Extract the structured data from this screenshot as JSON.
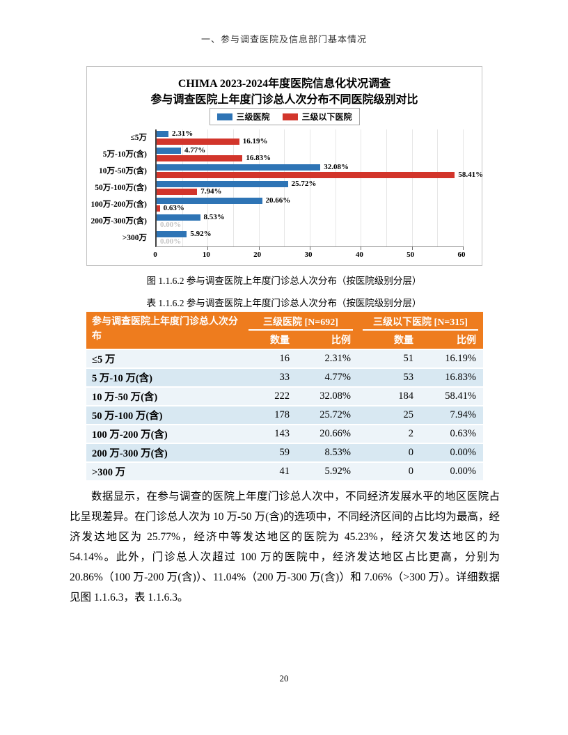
{
  "page": {
    "header": "一、参与调查医院及信息部门基本情况",
    "page_number": "20"
  },
  "chart_data": {
    "type": "bar",
    "orientation": "horizontal",
    "title_line1": "CHIMA 2023-2024年度医院信息化状况调查",
    "title_line2": "参与调查医院上年度门诊总人次分布不同医院级别对比",
    "categories": [
      "≤5万",
      "5万-10万(含)",
      "10万-50万(含)",
      "50万-100万(含)",
      "100万-200万(含)",
      "200万-300万(含)",
      ">300万"
    ],
    "series": [
      {
        "name": "三级医院",
        "color": "#2e74b5",
        "values": [
          2.31,
          4.77,
          32.08,
          25.72,
          20.66,
          8.53,
          5.92
        ]
      },
      {
        "name": "三级以下医院",
        "color": "#d2352b",
        "values": [
          16.19,
          16.83,
          58.41,
          7.94,
          0.63,
          0.0,
          0.0
        ]
      }
    ],
    "value_suffix": "%",
    "xlim": [
      0,
      60
    ],
    "x_ticks": [
      0,
      10,
      20,
      30,
      40,
      50,
      60
    ],
    "grid_step": 5,
    "legend_position": "top",
    "grid": true,
    "zero_label_color": "#c4c4c4"
  },
  "figure_caption": "图 1.1.6.2  参与调查医院上年度门诊总人次分布（按医院级别分层）",
  "table_caption": "表 1.1.6.2  参与调查医院上年度门诊总人次分布（按医院级别分层）",
  "table": {
    "corner_header": "参与调查医院上年度门诊总人次分布",
    "groups": [
      {
        "label": "三级医院 [N=692]"
      },
      {
        "label": "三级以下医院 [N=315]"
      }
    ],
    "sub_headers": [
      "数量",
      "比例",
      "数量",
      "比例"
    ],
    "rows": [
      {
        "label": "≤5 万",
        "cells": [
          "16",
          "2.31%",
          "51",
          "16.19%"
        ]
      },
      {
        "label": "5 万-10 万(含)",
        "cells": [
          "33",
          "4.77%",
          "53",
          "16.83%"
        ]
      },
      {
        "label": "10 万-50 万(含)",
        "cells": [
          "222",
          "32.08%",
          "184",
          "58.41%"
        ]
      },
      {
        "label": "50 万-100 万(含)",
        "cells": [
          "178",
          "25.72%",
          "25",
          "7.94%"
        ]
      },
      {
        "label": "100 万-200 万(含)",
        "cells": [
          "143",
          "20.66%",
          "2",
          "0.63%"
        ]
      },
      {
        "label": "200 万-300 万(含)",
        "cells": [
          "59",
          "8.53%",
          "0",
          "0.00%"
        ]
      },
      {
        "label": ">300 万",
        "cells": [
          "41",
          "5.92%",
          "0",
          "0.00%"
        ]
      }
    ],
    "colors": {
      "header_bg": "#ee7c1e",
      "row_light": "#edf4f9",
      "row_dark": "#d8e8f2"
    }
  },
  "paragraph": "数据显示，在参与调查的医院上年度门诊总人次中，不同经济发展水平的地区医院占比呈现差异。在门诊总人次为 10 万-50 万(含)的选项中，不同经济区间的占比均为最高，经济发达地区为 25.77%，经济中等发达地区的医院为 45.23%，经济欠发达地区的为 54.14%。此外，门诊总人次超过 100 万的医院中，经济发达地区占比更高，分别为 20.86%（100 万-200 万(含)）、11.04%（200 万-300 万(含)）和 7.06%（>300 万）。详细数据见图 1.1.6.3，表 1.1.6.3。"
}
